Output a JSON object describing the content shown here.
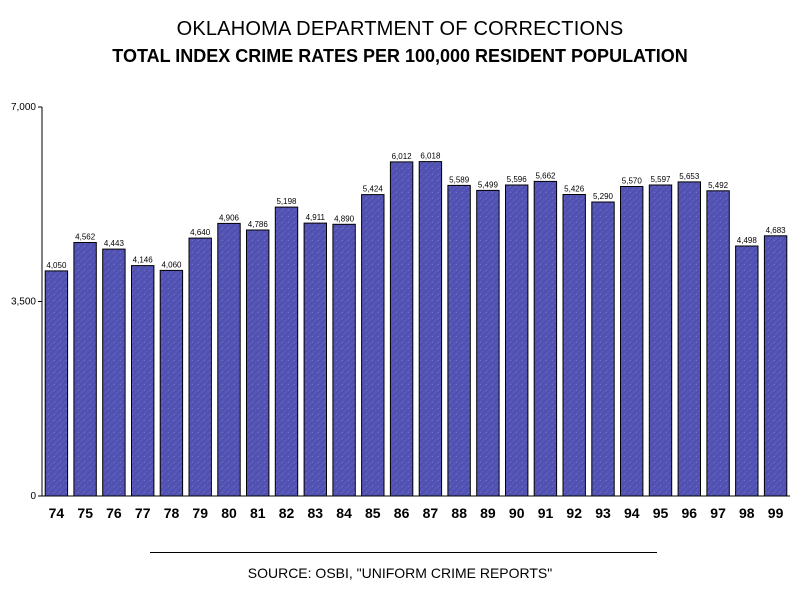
{
  "header": {
    "title": "OKLAHOMA DEPARTMENT OF CORRECTIONS",
    "subtitle": "TOTAL INDEX CRIME RATES PER 100,000 RESIDENT POPULATION"
  },
  "footer": {
    "source": "SOURCE:  OSBI, \"UNIFORM CRIME REPORTS\""
  },
  "colors": {
    "bar_fill": "#5656b8",
    "bar_fill_light": "#7676d0",
    "bar_stroke": "#000000"
  },
  "chart_data": {
    "type": "bar",
    "title": "OKLAHOMA DEPARTMENT OF CORRECTIONS",
    "subtitle": "TOTAL INDEX CRIME RATES PER 100,000 RESIDENT POPULATION",
    "xlabel": "",
    "ylabel": "",
    "categories": [
      "74",
      "75",
      "76",
      "77",
      "78",
      "79",
      "80",
      "81",
      "82",
      "83",
      "84",
      "85",
      "86",
      "87",
      "88",
      "89",
      "90",
      "91",
      "92",
      "93",
      "94",
      "95",
      "96",
      "97",
      "98",
      "99"
    ],
    "values": [
      4050,
      4562,
      4443,
      4146,
      4060,
      4640,
      4906,
      4786,
      5198,
      4911,
      4890,
      5424,
      6012,
      6018,
      5589,
      5499,
      5596,
      5662,
      5426,
      5290,
      5570,
      5597,
      5653,
      5492,
      4498,
      4683
    ],
    "value_labels": [
      "4,050",
      "4,562",
      "4,443",
      "4,146",
      "4,060",
      "4,640",
      "4,906",
      "4,786",
      "5,198",
      "4,911",
      "4,890",
      "5,424",
      "6,012",
      "6,018",
      "5,589",
      "5,499",
      "5,596",
      "5,662",
      "5,426",
      "5,290",
      "5,570",
      "5,597",
      "5,653",
      "5,492",
      "4,498",
      "4,683"
    ],
    "ylim": [
      0,
      7000
    ],
    "yticks": [
      0,
      3500,
      7000
    ],
    "ytick_labels": [
      "0",
      "3,500",
      "7,000"
    ],
    "grid": false,
    "legend": "none"
  }
}
